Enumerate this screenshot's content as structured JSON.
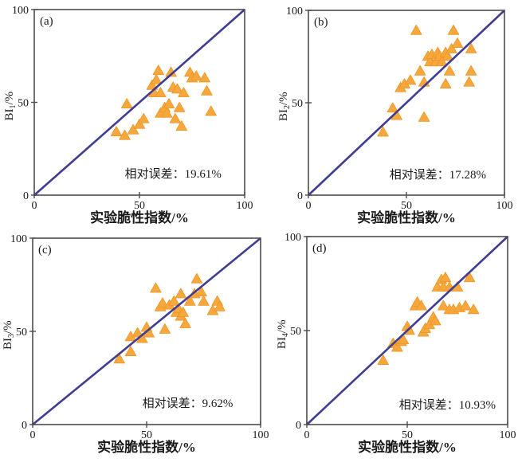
{
  "figure": {
    "background": "#ffffff",
    "colors": {
      "marker_fill": "#F7A83C",
      "marker_stroke": "#EE9526",
      "reference_line": "#3F3D94",
      "axis": "#4D4D4D",
      "text": "#1A1A1A"
    }
  },
  "chart_data": [
    {
      "type": "scatter",
      "panel_label": "(a)",
      "y_axis_label": {
        "base": "BI",
        "sub": "1",
        "suffix": "/%"
      },
      "x_axis_label": "实验脆性指数/%",
      "xlim": [
        0,
        100
      ],
      "ylim": [
        0,
        100
      ],
      "x_ticks": [
        "0",
        "50",
        "100"
      ],
      "y_ticks": [
        "0",
        "50",
        "100"
      ],
      "grid": false,
      "reference_line": {
        "x": [
          0,
          100
        ],
        "y": [
          0,
          100
        ]
      },
      "annotation": "相对误差：19.61%",
      "relative_error_percent": 19.61,
      "points": [
        [
          39,
          34
        ],
        [
          43,
          32
        ],
        [
          44,
          49
        ],
        [
          47,
          35
        ],
        [
          50,
          38
        ],
        [
          52,
          41
        ],
        [
          56,
          59
        ],
        [
          57,
          55
        ],
        [
          58,
          62
        ],
        [
          59,
          67
        ],
        [
          60,
          55
        ],
        [
          60,
          44
        ],
        [
          62,
          47
        ],
        [
          63,
          44
        ],
        [
          64,
          49
        ],
        [
          65,
          66
        ],
        [
          66,
          58
        ],
        [
          67,
          41
        ],
        [
          68,
          57
        ],
        [
          69,
          47
        ],
        [
          70,
          37
        ],
        [
          71,
          55
        ],
        [
          74,
          66
        ],
        [
          75,
          63
        ],
        [
          77,
          64
        ],
        [
          81,
          63
        ],
        [
          82,
          56
        ],
        [
          84,
          45
        ]
      ]
    },
    {
      "type": "scatter",
      "panel_label": "(b)",
      "y_axis_label": {
        "base": "BI",
        "sub": "2",
        "suffix": "/%"
      },
      "x_axis_label": "实验脆性指数/%",
      "xlim": [
        0,
        100
      ],
      "ylim": [
        0,
        100
      ],
      "x_ticks": [
        "0",
        "50",
        "100"
      ],
      "y_ticks": [
        "0",
        "50",
        "100"
      ],
      "grid": false,
      "reference_line": {
        "x": [
          0,
          100
        ],
        "y": [
          0,
          100
        ]
      },
      "annotation": "相对误差：17.28%",
      "relative_error_percent": 17.28,
      "points": [
        [
          38,
          34
        ],
        [
          43,
          47
        ],
        [
          45,
          43
        ],
        [
          47,
          58
        ],
        [
          49,
          60
        ],
        [
          52,
          62
        ],
        [
          55,
          89
        ],
        [
          57,
          67
        ],
        [
          59,
          61
        ],
        [
          59,
          42
        ],
        [
          61,
          75
        ],
        [
          62,
          72
        ],
        [
          63,
          76
        ],
        [
          65,
          72
        ],
        [
          66,
          77
        ],
        [
          67,
          75
        ],
        [
          68,
          72
        ],
        [
          70,
          77
        ],
        [
          70,
          60
        ],
        [
          71,
          75
        ],
        [
          72,
          67
        ],
        [
          73,
          79
        ],
        [
          74,
          89
        ],
        [
          76,
          82
        ],
        [
          82,
          61
        ],
        [
          83,
          79
        ],
        [
          83,
          67
        ]
      ]
    },
    {
      "type": "scatter",
      "panel_label": "(c)",
      "y_axis_label": {
        "base": "BI",
        "sub": "3",
        "suffix": "/%"
      },
      "x_axis_label": "实验脆性指数/%",
      "xlim": [
        0,
        100
      ],
      "ylim": [
        0,
        100
      ],
      "x_ticks": [
        "0",
        "50",
        "100"
      ],
      "y_ticks": [
        "0",
        "50",
        "100"
      ],
      "grid": false,
      "reference_line": {
        "x": [
          0,
          100
        ],
        "y": [
          0,
          100
        ]
      },
      "annotation": "相对误差：9.62%",
      "relative_error_percent": 9.62,
      "points": [
        [
          38,
          35
        ],
        [
          43,
          39
        ],
        [
          43,
          47
        ],
        [
          46,
          49
        ],
        [
          48,
          46
        ],
        [
          50,
          52
        ],
        [
          51,
          49
        ],
        [
          54,
          73
        ],
        [
          56,
          63
        ],
        [
          57,
          65
        ],
        [
          58,
          51
        ],
        [
          60,
          64
        ],
        [
          62,
          66
        ],
        [
          63,
          60
        ],
        [
          64,
          62
        ],
        [
          65,
          70
        ],
        [
          65,
          58
        ],
        [
          66,
          60
        ],
        [
          67,
          54
        ],
        [
          69,
          66
        ],
        [
          71,
          70
        ],
        [
          72,
          78
        ],
        [
          74,
          71
        ],
        [
          75,
          66
        ],
        [
          79,
          61
        ],
        [
          81,
          66
        ],
        [
          82,
          63
        ]
      ]
    },
    {
      "type": "scatter",
      "panel_label": "(d)",
      "y_axis_label": {
        "base": "BI",
        "sub": "4",
        "suffix": "/%"
      },
      "x_axis_label": "实验脆性指数/%",
      "xlim": [
        0,
        100
      ],
      "ylim": [
        0,
        100
      ],
      "x_ticks": [
        "0",
        "50",
        "100"
      ],
      "y_ticks": [
        "0",
        "50",
        "100"
      ],
      "grid": false,
      "reference_line": {
        "x": [
          0,
          100
        ],
        "y": [
          0,
          100
        ]
      },
      "annotation": "相对误差：10.93%",
      "relative_error_percent": 10.93,
      "points": [
        [
          38,
          34
        ],
        [
          43,
          43
        ],
        [
          45,
          41
        ],
        [
          47,
          44
        ],
        [
          48,
          45
        ],
        [
          50,
          52
        ],
        [
          51,
          50
        ],
        [
          54,
          63
        ],
        [
          55,
          65
        ],
        [
          57,
          63
        ],
        [
          58,
          49
        ],
        [
          59,
          51
        ],
        [
          61,
          53
        ],
        [
          63,
          57
        ],
        [
          64,
          55
        ],
        [
          65,
          73
        ],
        [
          67,
          77
        ],
        [
          68,
          73
        ],
        [
          68,
          63
        ],
        [
          69,
          78
        ],
        [
          71,
          73
        ],
        [
          71,
          61
        ],
        [
          73,
          61
        ],
        [
          75,
          73
        ],
        [
          76,
          62
        ],
        [
          79,
          63
        ],
        [
          81,
          78
        ],
        [
          83,
          61
        ]
      ]
    }
  ]
}
